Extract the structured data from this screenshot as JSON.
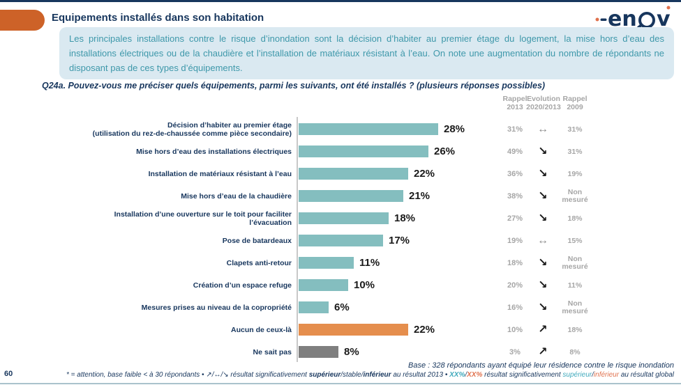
{
  "header": {
    "title": "Equipements installés dans son habitation",
    "logo_left": "en",
    "logo_right": "v"
  },
  "summary": {
    "text": "Les principales installations contre le risque d’inondation sont la décision d’habiter au premier étage du logement, la mise hors d’eau des installations électriques ou de la chaudière et l’installation de matériaux résistant à l’eau. On note une augmentation du nombre de répondants ne disposant pas de ces types d’équipements."
  },
  "question": "Q24a. Pouvez-vous me préciser quels équipements, parmi les suivants, ont été installés ? (plusieurs réponses possibles)",
  "columns": {
    "rappel2013": [
      "Rappel",
      "2013"
    ],
    "evolution": [
      "Evolution",
      "2020/2013"
    ],
    "rappel2009": [
      "Rappel",
      "2009"
    ]
  },
  "chart_data": {
    "type": "bar",
    "orientation": "horizontal",
    "unit": "%",
    "xlim": [
      0,
      30
    ],
    "grid": false,
    "evolution_glyphs": {
      "stable": "↔",
      "down": "↘",
      "up": "↗"
    },
    "bar_colors": {
      "default": "#84BEBF",
      "none_of_these": "#E58E4D",
      "dont_know": "#7F7F7F"
    },
    "rows": [
      {
        "label_lines": [
          "Décision d’habiter au premier étage",
          "(utilisation du rez-de-chaussée comme pièce secondaire)"
        ],
        "value": 28,
        "display": "28%",
        "color_key": "default",
        "rappel_2013": "31%",
        "evolution": "stable",
        "rappel_2009": "31%"
      },
      {
        "label_lines": [
          "Mise hors d’eau des installations électriques"
        ],
        "value": 26,
        "display": "26%",
        "color_key": "default",
        "rappel_2013": "49%",
        "evolution": "down",
        "rappel_2009": "31%"
      },
      {
        "label_lines": [
          "Installation de matériaux résistant à l’eau"
        ],
        "value": 22,
        "display": "22%",
        "color_key": "default",
        "rappel_2013": "36%",
        "evolution": "down",
        "rappel_2009": "19%"
      },
      {
        "label_lines": [
          "Mise hors d’eau de la chaudière"
        ],
        "value": 21,
        "display": "21%",
        "color_key": "default",
        "rappel_2013": "38%",
        "evolution": "down",
        "rappel_2009": "Non mesuré"
      },
      {
        "label_lines": [
          "Installation d’une ouverture sur le toit pour faciliter",
          "l’évacuation"
        ],
        "value": 18,
        "display": "18%",
        "color_key": "default",
        "rappel_2013": "27%",
        "evolution": "down",
        "rappel_2009": "18%"
      },
      {
        "label_lines": [
          "Pose de batardeaux"
        ],
        "value": 17,
        "display": "17%",
        "color_key": "default",
        "rappel_2013": "19%",
        "evolution": "stable",
        "rappel_2009": "15%"
      },
      {
        "label_lines": [
          "Clapets anti-retour"
        ],
        "value": 11,
        "display": "11%",
        "color_key": "default",
        "rappel_2013": "18%",
        "evolution": "down",
        "rappel_2009": "Non mesuré"
      },
      {
        "label_lines": [
          "Création d’un espace refuge"
        ],
        "value": 10,
        "display": "10%",
        "color_key": "default",
        "rappel_2013": "20%",
        "evolution": "down",
        "rappel_2009": "11%"
      },
      {
        "label_lines": [
          "Mesures prises au niveau de la copropriété"
        ],
        "value": 6,
        "display": "6%",
        "color_key": "default",
        "rappel_2013": "16%",
        "evolution": "down",
        "rappel_2009": "Non mesuré"
      },
      {
        "label_lines": [
          "Aucun de ceux-là"
        ],
        "value": 22,
        "display": "22%",
        "color_key": "none_of_these",
        "rappel_2013": "10%",
        "evolution": "up",
        "rappel_2009": "18%"
      },
      {
        "label_lines": [
          "Ne sait pas"
        ],
        "value": 8,
        "display": "8%",
        "color_key": "dont_know",
        "rappel_2013": "3%",
        "evolution": "up",
        "rappel_2009": "8%"
      }
    ]
  },
  "footer": {
    "page_number": "60",
    "base_note": "Base : 328 répondants ayant équipé leur résidence contre le risque inondation",
    "note": {
      "p1": "* = attention, base faible < à 30 répondants • ↗/↔/↘ résultat significativement ",
      "p2": "supérieur",
      "p3": "/stable/",
      "p4": "inférieur",
      "p5": " au résultat 2013 • ",
      "p6": "XX%",
      "p7": "/",
      "p8": "XX%",
      "p9": " résultat significativement ",
      "p10": "supérieur",
      "p11": "/",
      "p12": "inférieur",
      "p13": " au résultat global"
    }
  },
  "colors": {
    "navy": "#17365D",
    "teal_text": "#3E98AA",
    "summary_bg": "#DAE9F1",
    "tab_orange": "#CD6228",
    "gray_text": "#A6A6A6",
    "axis_gray": "#C8C8C8",
    "value_black": "#1A1A1A",
    "arrow_gray": "#8C8C8C",
    "note_teal": "#3FA9BC",
    "note_orange": "#E0714D",
    "bottom_rule": "#A9C2CC",
    "logo_teal": "#4FB3BF"
  }
}
